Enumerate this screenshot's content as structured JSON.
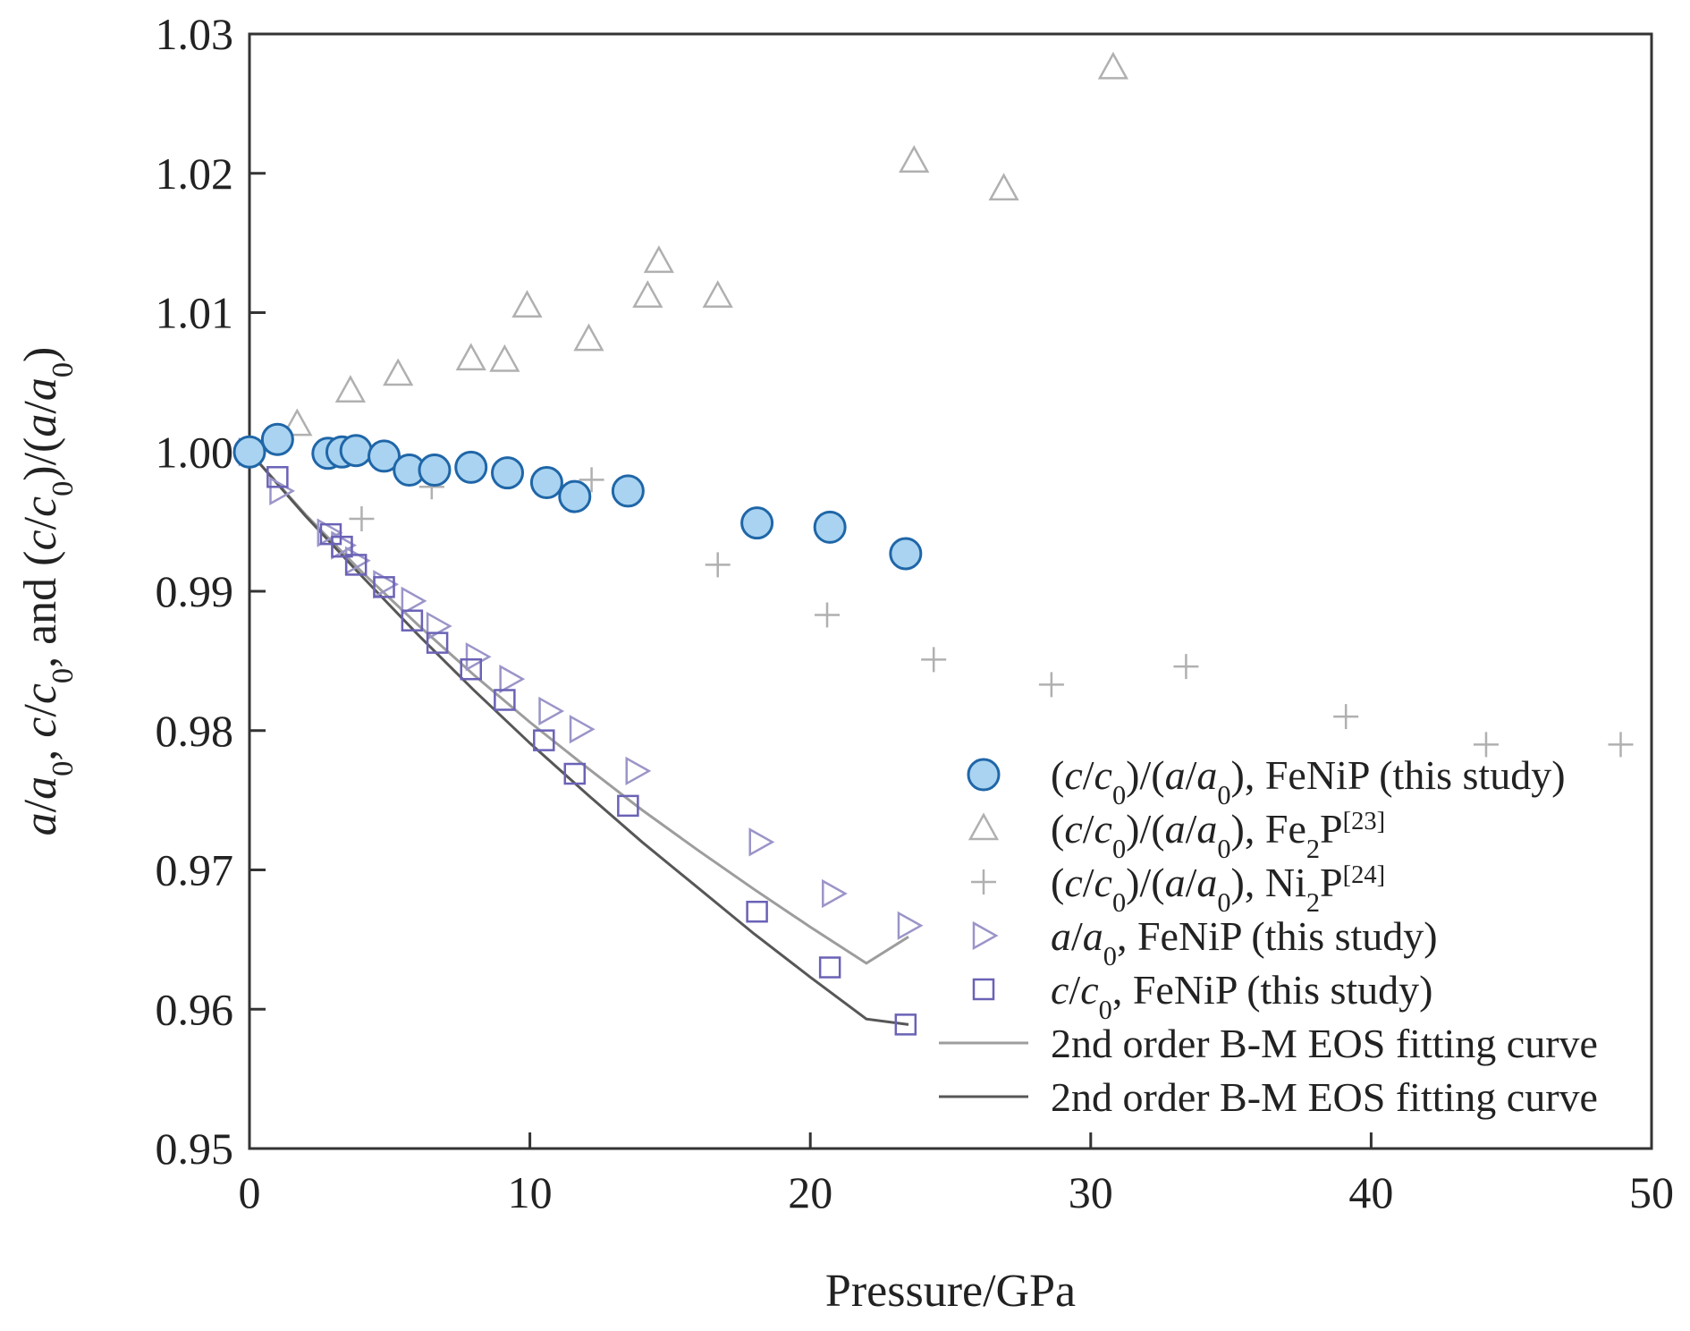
{
  "chart_data": {
    "type": "scatter",
    "xlabel": "Pressure/GPa",
    "ylabel": "a/a0, c/c0, and (c/c0)/(a/a0)",
    "xlim": [
      0,
      50
    ],
    "ylim": [
      0.95,
      1.03
    ],
    "x_ticks": [
      0,
      10,
      20,
      30,
      40,
      50
    ],
    "x_tick_labels": [
      "0",
      "10",
      "20",
      "30",
      "40",
      "50"
    ],
    "y_ticks": [
      0.95,
      0.96,
      0.97,
      0.98,
      0.99,
      1.0,
      1.01,
      1.02,
      1.03
    ],
    "y_tick_labels": [
      "0.95",
      "0.96",
      "0.97",
      "0.98",
      "0.99",
      "1.00",
      "1.01",
      "1.02",
      "1.03"
    ],
    "legend_position": "bottom-right",
    "series": [
      {
        "name": "(c/c0)/(a/a0), FeNiP (this study)",
        "marker": "circle",
        "color": "#a9d3f0",
        "edge": "#1f66a8",
        "points": [
          [
            0.0,
            1.0
          ],
          [
            1.0,
            1.0009
          ],
          [
            2.8,
            0.9999
          ],
          [
            3.3,
            1.0
          ],
          [
            3.8,
            1.0001
          ],
          [
            4.8,
            0.9997
          ],
          [
            5.7,
            0.9987
          ],
          [
            6.6,
            0.9987
          ],
          [
            7.9,
            0.9989
          ],
          [
            9.2,
            0.9985
          ],
          [
            10.6,
            0.9978
          ],
          [
            11.6,
            0.9968
          ],
          [
            13.5,
            0.9972
          ],
          [
            18.1,
            0.9949
          ],
          [
            20.7,
            0.9946
          ],
          [
            23.4,
            0.9927
          ]
        ]
      },
      {
        "name": "(c/c0)/(a/a0), Fe2P[23]",
        "marker": "triangle-up",
        "color": "#b0b0b0",
        "points": [
          [
            1.7,
            1.002
          ],
          [
            3.6,
            1.0044
          ],
          [
            5.3,
            1.0056
          ],
          [
            7.9,
            1.0067
          ],
          [
            9.1,
            1.0066
          ],
          [
            9.9,
            1.0105
          ],
          [
            12.1,
            1.0081
          ],
          [
            14.2,
            1.0112
          ],
          [
            14.6,
            1.0137
          ],
          [
            16.7,
            1.0112
          ],
          [
            23.7,
            1.0209
          ],
          [
            26.9,
            1.0189
          ],
          [
            30.8,
            1.0276
          ]
        ]
      },
      {
        "name": "(c/c0)/(a/a0), Ni2P[24]",
        "marker": "plus",
        "color": "#b0b0b0",
        "points": [
          [
            4.0,
            0.9952
          ],
          [
            6.5,
            0.9975
          ],
          [
            12.2,
            0.998
          ],
          [
            16.7,
            0.9919
          ],
          [
            20.6,
            0.9883
          ],
          [
            24.4,
            0.9851
          ],
          [
            28.6,
            0.9833
          ],
          [
            33.4,
            0.9846
          ],
          [
            39.1,
            0.981
          ],
          [
            44.1,
            0.979
          ],
          [
            48.9,
            0.979
          ]
        ]
      },
      {
        "name": "a/a0, FeNiP (this study)",
        "marker": "triangle-right",
        "color": "#9a95c8",
        "points": [
          [
            0.0,
            1.0
          ],
          [
            1.1,
            0.9972
          ],
          [
            2.8,
            0.9942
          ],
          [
            3.3,
            0.9933
          ],
          [
            3.8,
            0.9922
          ],
          [
            4.8,
            0.9905
          ],
          [
            5.8,
            0.9893
          ],
          [
            6.7,
            0.9875
          ],
          [
            8.1,
            0.9853
          ],
          [
            9.3,
            0.9837
          ],
          [
            10.7,
            0.9814
          ],
          [
            11.8,
            0.9801
          ],
          [
            13.8,
            0.9771
          ],
          [
            18.2,
            0.972
          ],
          [
            20.8,
            0.9683
          ],
          [
            23.5,
            0.966
          ]
        ]
      },
      {
        "name": "c/c0, FeNiP (this study)",
        "marker": "square",
        "color": "#6a62b6",
        "points": [
          [
            0.0,
            1.0
          ],
          [
            1.0,
            0.9982
          ],
          [
            2.9,
            0.9941
          ],
          [
            3.3,
            0.9932
          ],
          [
            3.8,
            0.9919
          ],
          [
            4.8,
            0.9903
          ],
          [
            5.8,
            0.9879
          ],
          [
            6.7,
            0.9863
          ],
          [
            7.9,
            0.9844
          ],
          [
            9.1,
            0.9822
          ],
          [
            10.5,
            0.9793
          ],
          [
            11.6,
            0.9769
          ],
          [
            13.5,
            0.9746
          ],
          [
            18.1,
            0.967
          ],
          [
            20.7,
            0.963
          ],
          [
            23.4,
            0.9589
          ]
        ]
      },
      {
        "name": "2nd order B-M EOS fitting curve",
        "marker": "line",
        "color": "#9d9d9d",
        "points": [
          [
            0,
            1.0
          ],
          [
            2,
            0.9955
          ],
          [
            4,
            0.9914
          ],
          [
            6,
            0.9876
          ],
          [
            8,
            0.984
          ],
          [
            10,
            0.9806
          ],
          [
            12,
            0.9774
          ],
          [
            14,
            0.9743
          ],
          [
            16,
            0.9714
          ],
          [
            18,
            0.9686
          ],
          [
            20,
            0.9659
          ],
          [
            22,
            0.9633
          ],
          [
            23.5,
            0.9652
          ]
        ]
      },
      {
        "name": "2nd order B-M EOS fitting curve",
        "marker": "line",
        "color": "#575757",
        "points": [
          [
            0,
            1.0
          ],
          [
            2,
            0.9954
          ],
          [
            4,
            0.9911
          ],
          [
            6,
            0.9869
          ],
          [
            8,
            0.9829
          ],
          [
            10,
            0.9791
          ],
          [
            12,
            0.9755
          ],
          [
            14,
            0.972
          ],
          [
            16,
            0.9687
          ],
          [
            18,
            0.9654
          ],
          [
            20,
            0.9623
          ],
          [
            22,
            0.9593
          ],
          [
            23.5,
            0.9589
          ]
        ]
      }
    ]
  }
}
